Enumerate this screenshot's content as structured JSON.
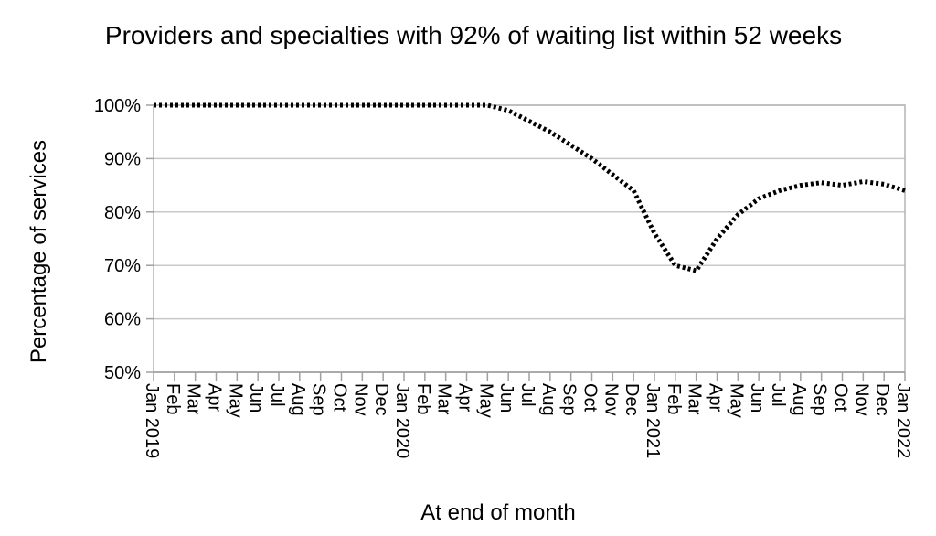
{
  "chart_data": {
    "type": "line",
    "title": "Providers and specialties with 92% of waiting list within 52 weeks",
    "xlabel": "At end of month",
    "ylabel": "Percentage of services",
    "ylim": [
      50,
      100
    ],
    "y_tick_labels": [
      "50%",
      "60%",
      "70%",
      "80%",
      "90%",
      "100%"
    ],
    "grid": true,
    "legend": "none",
    "x_tick_labels": [
      "Jan 2019",
      "Feb",
      "Mar",
      "Apr",
      "May",
      "Jun",
      "Jul",
      "Aug",
      "Sep",
      "Oct",
      "Nov",
      "Dec",
      "Jan 2020",
      "Feb",
      "Mar",
      "Apr",
      "May",
      "Jun",
      "Jul",
      "Aug",
      "Sep",
      "Oct",
      "Nov",
      "Dec",
      "Jan 2021",
      "Feb",
      "Mar",
      "Apr",
      "May",
      "Jun",
      "Jul",
      "Aug",
      "Sep",
      "Oct",
      "Nov",
      "Dec",
      "Jan 2022"
    ],
    "series": [
      {
        "values": [
          100,
          100,
          100,
          100,
          100,
          100,
          100,
          100,
          100,
          100,
          100,
          100,
          100,
          100,
          100,
          100,
          100,
          99,
          97,
          95,
          92.5,
          90,
          87,
          84,
          76,
          70,
          69,
          75,
          79.5,
          82.5,
          84,
          85,
          85.5,
          85,
          85.7,
          85.2,
          84
        ]
      }
    ]
  }
}
